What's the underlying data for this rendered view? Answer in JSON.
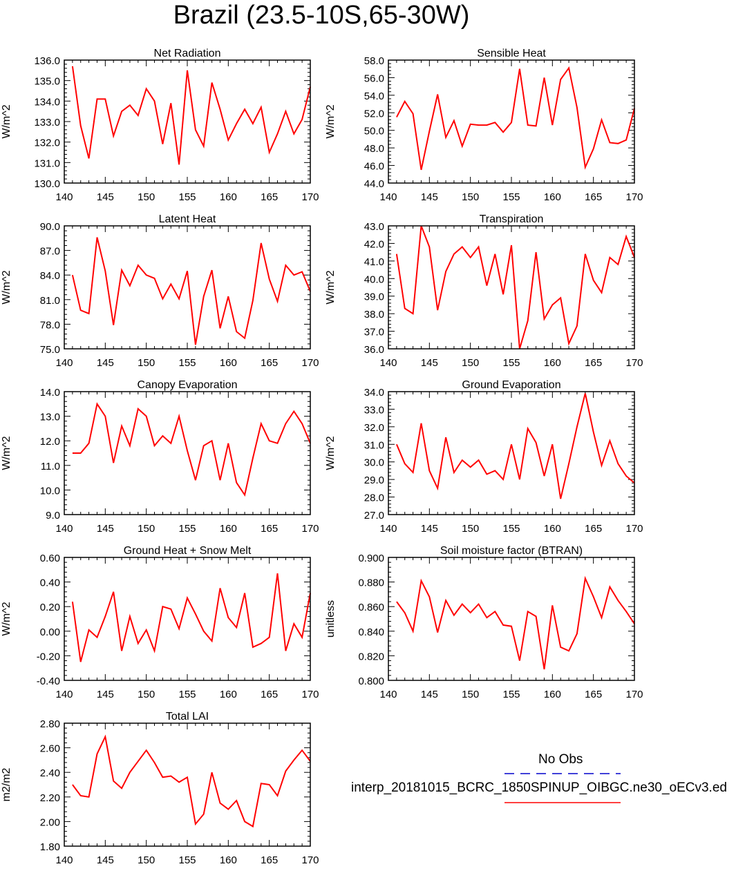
{
  "title": "Brazil (23.5-10S,65-30W)",
  "colors": {
    "line": "#ff0000",
    "obs": "#0000cc",
    "axis": "#000000"
  },
  "legend": {
    "obs_label": "No Obs",
    "model_label": "interp_20181015_BCRC_1850SPINUP_OIBGC.ne30_oECv3.ed"
  },
  "chart_data": [
    {
      "type": "line",
      "title": "Net Radiation",
      "ylabel": "W/m^2",
      "xlim": [
        140,
        170
      ],
      "ylim": [
        130,
        136
      ],
      "xticks": [
        "140",
        "145",
        "150",
        "155",
        "160",
        "165",
        "170"
      ],
      "yticks": [
        "130.0",
        "131.0",
        "132.0",
        "133.0",
        "134.0",
        "135.0",
        "136.0"
      ],
      "x": [
        141,
        142,
        143,
        144,
        145,
        146,
        147,
        148,
        149,
        150,
        151,
        152,
        153,
        154,
        155,
        156,
        157,
        158,
        159,
        160,
        161,
        162,
        163,
        164,
        165,
        166,
        167,
        168,
        169,
        170
      ],
      "values": [
        135.7,
        132.8,
        131.2,
        134.1,
        134.1,
        132.3,
        133.5,
        133.8,
        133.3,
        134.6,
        134.0,
        131.9,
        133.9,
        130.9,
        135.5,
        132.6,
        131.8,
        134.9,
        133.6,
        132.1,
        132.9,
        133.6,
        132.9,
        133.7,
        131.5,
        132.4,
        133.5,
        132.4,
        133.1,
        134.7
      ]
    },
    {
      "type": "line",
      "title": "Sensible Heat",
      "ylabel": "W/m^2",
      "xlim": [
        140,
        170
      ],
      "ylim": [
        44,
        58
      ],
      "xticks": [
        "140",
        "145",
        "150",
        "155",
        "160",
        "165",
        "170"
      ],
      "yticks": [
        "44.0",
        "46.0",
        "48.0",
        "50.0",
        "52.0",
        "54.0",
        "56.0",
        "58.0"
      ],
      "x": [
        141,
        142,
        143,
        144,
        145,
        146,
        147,
        148,
        149,
        150,
        151,
        152,
        153,
        154,
        155,
        156,
        157,
        158,
        159,
        160,
        161,
        162,
        163,
        164,
        165,
        166,
        167,
        168,
        169,
        170
      ],
      "values": [
        51.5,
        53.3,
        51.9,
        45.5,
        49.9,
        54.1,
        49.2,
        51.1,
        48.2,
        50.7,
        50.6,
        50.6,
        50.9,
        49.8,
        50.9,
        57.0,
        50.6,
        50.5,
        56.0,
        50.6,
        55.8,
        57.1,
        52.6,
        45.8,
        47.9,
        51.2,
        48.6,
        48.5,
        48.9,
        52.5
      ]
    },
    {
      "type": "line",
      "title": "Latent Heat",
      "ylabel": "W/m^2",
      "xlim": [
        140,
        170
      ],
      "ylim": [
        75,
        90
      ],
      "xticks": [
        "140",
        "145",
        "150",
        "155",
        "160",
        "165",
        "170"
      ],
      "yticks": [
        "75.0",
        "78.0",
        "81.0",
        "84.0",
        "87.0",
        "90.0"
      ],
      "x": [
        141,
        142,
        143,
        144,
        145,
        146,
        147,
        148,
        149,
        150,
        151,
        152,
        153,
        154,
        155,
        156,
        157,
        158,
        159,
        160,
        161,
        162,
        163,
        164,
        165,
        166,
        167,
        168,
        169,
        170
      ],
      "values": [
        84.0,
        79.7,
        79.3,
        88.6,
        84.5,
        77.9,
        84.6,
        82.7,
        85.2,
        84.0,
        83.6,
        81.1,
        82.9,
        81.1,
        84.5,
        75.5,
        81.4,
        84.6,
        77.5,
        81.4,
        77.1,
        76.3,
        80.9,
        87.9,
        83.5,
        80.8,
        85.2,
        84.0,
        84.4,
        82.0
      ]
    },
    {
      "type": "line",
      "title": "Transpiration",
      "ylabel": "W/m^2",
      "xlim": [
        140,
        170
      ],
      "ylim": [
        36,
        43
      ],
      "xticks": [
        "140",
        "145",
        "150",
        "155",
        "160",
        "165",
        "170"
      ],
      "yticks": [
        "36.0",
        "37.0",
        "38.0",
        "39.0",
        "40.0",
        "41.0",
        "42.0",
        "43.0"
      ],
      "x": [
        141,
        142,
        143,
        144,
        145,
        146,
        147,
        148,
        149,
        150,
        151,
        152,
        153,
        154,
        155,
        156,
        157,
        158,
        159,
        160,
        161,
        162,
        163,
        164,
        165,
        166,
        167,
        168,
        169,
        170
      ],
      "values": [
        41.4,
        38.3,
        38.0,
        43.0,
        41.8,
        38.2,
        40.4,
        41.4,
        41.8,
        41.2,
        41.8,
        39.6,
        41.4,
        39.1,
        41.9,
        36.0,
        37.6,
        41.5,
        37.7,
        38.5,
        38.9,
        36.3,
        37.3,
        41.4,
        39.9,
        39.2,
        41.2,
        40.8,
        42.4,
        41.2
      ]
    },
    {
      "type": "line",
      "title": "Canopy Evaporation",
      "ylabel": "W/m^2",
      "xlim": [
        140,
        170
      ],
      "ylim": [
        9,
        14
      ],
      "xticks": [
        "140",
        "145",
        "150",
        "155",
        "160",
        "165",
        "170"
      ],
      "yticks": [
        "9.0",
        "10.0",
        "11.0",
        "12.0",
        "13.0",
        "14.0"
      ],
      "x": [
        141,
        142,
        143,
        144,
        145,
        146,
        147,
        148,
        149,
        150,
        151,
        152,
        153,
        154,
        155,
        156,
        157,
        158,
        159,
        160,
        161,
        162,
        163,
        164,
        165,
        166,
        167,
        168,
        169,
        170
      ],
      "values": [
        11.5,
        11.5,
        11.9,
        13.5,
        13.0,
        11.1,
        12.6,
        11.8,
        13.3,
        13.0,
        11.8,
        12.2,
        11.9,
        13.0,
        11.6,
        10.4,
        11.8,
        12.0,
        10.4,
        11.9,
        10.3,
        9.8,
        11.3,
        12.7,
        12.0,
        11.9,
        12.7,
        13.2,
        12.7,
        11.9
      ]
    },
    {
      "type": "line",
      "title": "Ground Evaporation",
      "ylabel": "W/m^2",
      "xlim": [
        140,
        170
      ],
      "ylim": [
        27,
        34
      ],
      "xticks": [
        "140",
        "145",
        "150",
        "155",
        "160",
        "165",
        "170"
      ],
      "yticks": [
        "27.0",
        "28.0",
        "29.0",
        "30.0",
        "31.0",
        "32.0",
        "33.0",
        "34.0"
      ],
      "x": [
        141,
        142,
        143,
        144,
        145,
        146,
        147,
        148,
        149,
        150,
        151,
        152,
        153,
        154,
        155,
        156,
        157,
        158,
        159,
        160,
        161,
        162,
        163,
        164,
        165,
        166,
        167,
        168,
        169,
        170
      ],
      "values": [
        31.0,
        29.9,
        29.4,
        32.2,
        29.5,
        28.5,
        31.4,
        29.4,
        30.1,
        29.7,
        30.1,
        29.3,
        29.5,
        29.0,
        31.0,
        29.0,
        31.9,
        31.1,
        29.2,
        31.0,
        27.9,
        29.9,
        32.0,
        33.9,
        31.7,
        29.8,
        31.2,
        29.9,
        29.2,
        28.8
      ]
    },
    {
      "type": "line",
      "title": "Ground Heat + Snow Melt",
      "ylabel": "W/m^2",
      "xlim": [
        140,
        170
      ],
      "ylim": [
        -0.4,
        0.6
      ],
      "xticks": [
        "140",
        "145",
        "150",
        "155",
        "160",
        "165",
        "170"
      ],
      "yticks": [
        "-0.40",
        "-0.20",
        "0.00",
        "0.20",
        "0.40",
        "0.60"
      ],
      "x": [
        141,
        142,
        143,
        144,
        145,
        146,
        147,
        148,
        149,
        150,
        151,
        152,
        153,
        154,
        155,
        156,
        157,
        158,
        159,
        160,
        161,
        162,
        163,
        164,
        165,
        166,
        167,
        168,
        169,
        170
      ],
      "values": [
        0.24,
        -0.25,
        0.01,
        -0.05,
        0.12,
        0.32,
        -0.16,
        0.12,
        -0.1,
        0.01,
        -0.16,
        0.2,
        0.18,
        0.02,
        0.27,
        0.14,
        0.0,
        -0.08,
        0.35,
        0.11,
        0.03,
        0.31,
        -0.13,
        -0.1,
        -0.05,
        0.47,
        -0.16,
        0.06,
        -0.05,
        0.31
      ]
    },
    {
      "type": "line",
      "title": "Soil moisture factor (BTRAN)",
      "ylabel": "unitless",
      "xlim": [
        140,
        170
      ],
      "ylim": [
        0.8,
        0.9
      ],
      "xticks": [
        "140",
        "145",
        "150",
        "155",
        "160",
        "165",
        "170"
      ],
      "yticks": [
        "0.800",
        "0.820",
        "0.840",
        "0.860",
        "0.880",
        "0.900"
      ],
      "x": [
        141,
        142,
        143,
        144,
        145,
        146,
        147,
        148,
        149,
        150,
        151,
        152,
        153,
        154,
        155,
        156,
        157,
        158,
        159,
        160,
        161,
        162,
        163,
        164,
        165,
        166,
        167,
        168,
        169,
        170
      ],
      "values": [
        0.864,
        0.855,
        0.84,
        0.881,
        0.868,
        0.839,
        0.865,
        0.853,
        0.862,
        0.855,
        0.862,
        0.851,
        0.856,
        0.845,
        0.844,
        0.816,
        0.856,
        0.852,
        0.809,
        0.861,
        0.827,
        0.824,
        0.838,
        0.883,
        0.868,
        0.851,
        0.876,
        0.865,
        0.856,
        0.846
      ]
    },
    {
      "type": "line",
      "title": "Total LAI",
      "ylabel": "m2/m2",
      "xlim": [
        140,
        170
      ],
      "ylim": [
        1.8,
        2.8
      ],
      "xticks": [
        "140",
        "145",
        "150",
        "155",
        "160",
        "165",
        "170"
      ],
      "yticks": [
        "1.80",
        "2.00",
        "2.20",
        "2.40",
        "2.60",
        "2.80"
      ],
      "x": [
        141,
        142,
        143,
        144,
        145,
        146,
        147,
        148,
        149,
        150,
        151,
        152,
        153,
        154,
        155,
        156,
        157,
        158,
        159,
        160,
        161,
        162,
        163,
        164,
        165,
        166,
        167,
        168,
        169,
        170
      ],
      "values": [
        2.3,
        2.21,
        2.2,
        2.55,
        2.69,
        2.33,
        2.27,
        2.4,
        2.49,
        2.58,
        2.48,
        2.36,
        2.37,
        2.32,
        2.36,
        1.98,
        2.06,
        2.4,
        2.15,
        2.1,
        2.17,
        2.0,
        1.96,
        2.31,
        2.3,
        2.21,
        2.41,
        2.5,
        2.58,
        2.49
      ]
    }
  ]
}
